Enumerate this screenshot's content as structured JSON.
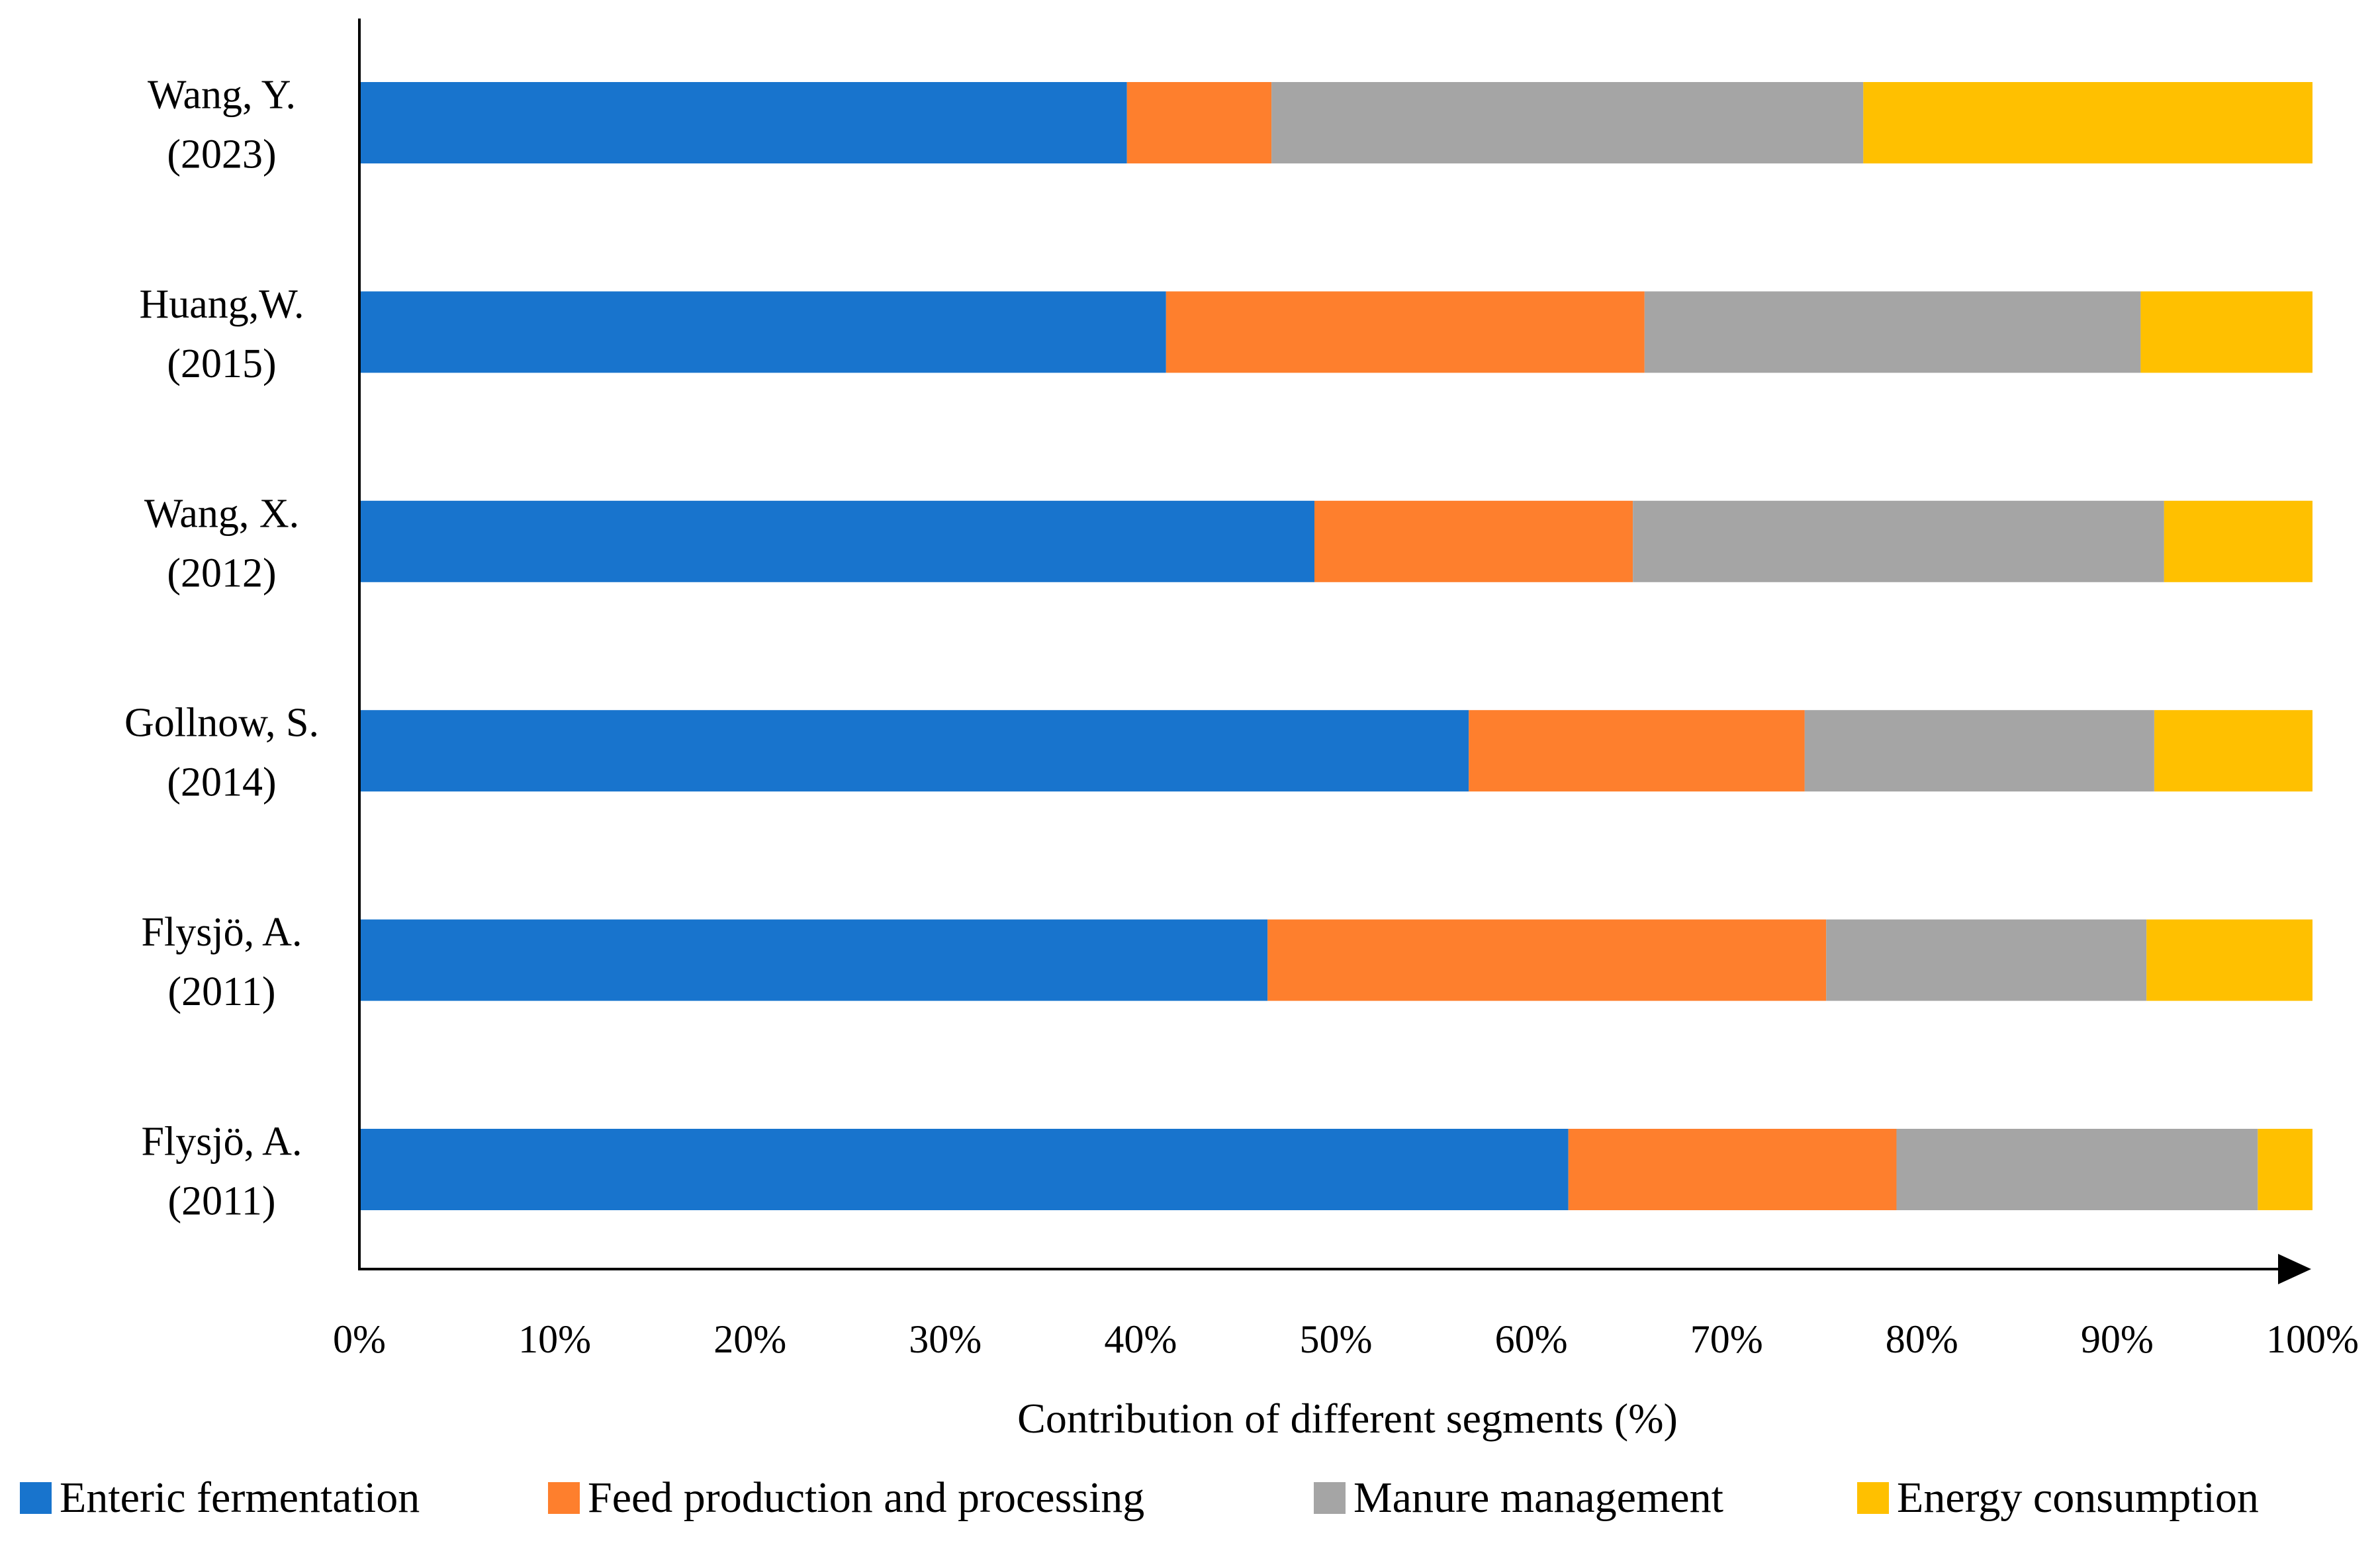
{
  "chart_data": {
    "type": "bar",
    "orientation": "horizontal",
    "stacked": true,
    "title": "",
    "xlabel": "Contribution of different segments (%)",
    "ylabel": "",
    "xlim": [
      0,
      100
    ],
    "xticks": [
      "0%",
      "10%",
      "20%",
      "30%",
      "40%",
      "50%",
      "60%",
      "70%",
      "80%",
      "90%",
      "100%"
    ],
    "grid": false,
    "legend_position": "bottom",
    "categories": [
      {
        "name": "Wang, Y.",
        "year": "(2023)"
      },
      {
        "name": "Huang,W.",
        "year": "(2015)"
      },
      {
        "name": "Wang, X.",
        "year": "(2012)"
      },
      {
        "name": "Gollnow, S.",
        "year": "(2014)"
      },
      {
        "name": "Flysjö, A.",
        "year": "(2011)"
      },
      {
        "name": "Flysjö, A.",
        "year": "(2011)"
      }
    ],
    "series": [
      {
        "name": "Enteric fermentation",
        "color": "#1874cd",
        "values": [
          39.3,
          41.3,
          48.9,
          56.8,
          46.5,
          61.9
        ]
      },
      {
        "name": "Feed production and processing",
        "color": "#fe7f2d",
        "values": [
          7.4,
          24.5,
          16.3,
          17.2,
          28.6,
          16.8
        ]
      },
      {
        "name": "Manure management",
        "color": "#a5a5a5",
        "values": [
          30.3,
          25.4,
          27.2,
          17.9,
          16.4,
          18.5
        ]
      },
      {
        "name": "Energy consumption",
        "color": "#ffc000",
        "values": [
          23.0,
          8.8,
          7.6,
          8.1,
          8.5,
          2.8
        ]
      }
    ]
  }
}
